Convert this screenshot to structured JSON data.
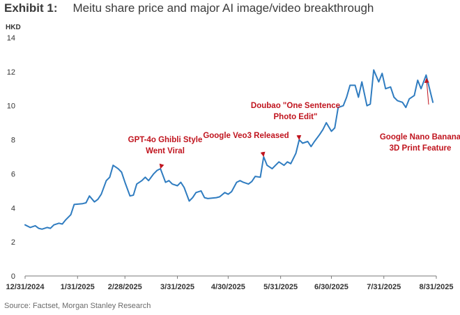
{
  "header": {
    "exhibit_label": "Exhibit 1:",
    "title": "Meitu share price and major AI image/video breakthrough"
  },
  "footer": {
    "source": "Source: Factset, Morgan Stanley Research"
  },
  "colors": {
    "line": "#2f7cc0",
    "annotation": "#c0141e",
    "axis_text": "#333333"
  },
  "chart_data": {
    "type": "line",
    "ylabel": "HKD",
    "xlabel": "",
    "ylim": [
      0,
      14
    ],
    "yticks": [
      0,
      2,
      4,
      6,
      8,
      10,
      12,
      14
    ],
    "xlim": [
      "2024-12-31",
      "2025-08-31"
    ],
    "xticks": [
      "2024-12-31",
      "2025-01-31",
      "2025-02-28",
      "2025-03-31",
      "2025-04-30",
      "2025-05-31",
      "2025-06-30",
      "2025-07-31",
      "2025-08-31"
    ],
    "xtick_labels": [
      "12/31/2024",
      "1/31/2025",
      "2/28/2025",
      "3/31/2025",
      "4/30/2025",
      "5/31/2025",
      "6/30/2025",
      "7/31/2025",
      "8/31/2025"
    ],
    "grid": false,
    "series": [
      {
        "points": [
          [
            "2024-12-31",
            3.0
          ],
          [
            "2025-01-03",
            2.85
          ],
          [
            "2025-01-06",
            2.95
          ],
          [
            "2025-01-08",
            2.8
          ],
          [
            "2025-01-10",
            2.75
          ],
          [
            "2025-01-13",
            2.85
          ],
          [
            "2025-01-15",
            2.8
          ],
          [
            "2025-01-17",
            3.0
          ],
          [
            "2025-01-20",
            3.1
          ],
          [
            "2025-01-22",
            3.05
          ],
          [
            "2025-01-24",
            3.3
          ],
          [
            "2025-01-27",
            3.6
          ],
          [
            "2025-01-29",
            4.2
          ],
          [
            "2025-02-03",
            4.25
          ],
          [
            "2025-02-05",
            4.3
          ],
          [
            "2025-02-07",
            4.7
          ],
          [
            "2025-02-10",
            4.35
          ],
          [
            "2025-02-12",
            4.5
          ],
          [
            "2025-02-14",
            4.8
          ],
          [
            "2025-02-17",
            5.6
          ],
          [
            "2025-02-19",
            5.8
          ],
          [
            "2025-02-21",
            6.5
          ],
          [
            "2025-02-24",
            6.3
          ],
          [
            "2025-02-26",
            6.1
          ],
          [
            "2025-02-28",
            5.5
          ],
          [
            "2025-03-03",
            4.7
          ],
          [
            "2025-03-05",
            4.75
          ],
          [
            "2025-03-07",
            5.4
          ],
          [
            "2025-03-10",
            5.6
          ],
          [
            "2025-03-12",
            5.8
          ],
          [
            "2025-03-14",
            5.6
          ],
          [
            "2025-03-17",
            6.0
          ],
          [
            "2025-03-19",
            6.2
          ],
          [
            "2025-03-21",
            6.3
          ],
          [
            "2025-03-24",
            5.5
          ],
          [
            "2025-03-26",
            5.6
          ],
          [
            "2025-03-28",
            5.4
          ],
          [
            "2025-03-31",
            5.3
          ],
          [
            "2025-04-02",
            5.5
          ],
          [
            "2025-04-04",
            5.2
          ],
          [
            "2025-04-07",
            4.4
          ],
          [
            "2025-04-09",
            4.6
          ],
          [
            "2025-04-11",
            4.9
          ],
          [
            "2025-04-14",
            5.0
          ],
          [
            "2025-04-16",
            4.6
          ],
          [
            "2025-04-18",
            4.55
          ],
          [
            "2025-04-23",
            4.6
          ],
          [
            "2025-04-25",
            4.65
          ],
          [
            "2025-04-28",
            4.9
          ],
          [
            "2025-04-30",
            4.8
          ],
          [
            "2025-05-02",
            4.95
          ],
          [
            "2025-05-05",
            5.5
          ],
          [
            "2025-05-07",
            5.6
          ],
          [
            "2025-05-09",
            5.5
          ],
          [
            "2025-05-12",
            5.4
          ],
          [
            "2025-05-14",
            5.55
          ],
          [
            "2025-05-16",
            5.85
          ],
          [
            "2025-05-19",
            5.8
          ],
          [
            "2025-05-21",
            7.0
          ],
          [
            "2025-05-23",
            6.5
          ],
          [
            "2025-05-26",
            6.3
          ],
          [
            "2025-05-28",
            6.5
          ],
          [
            "2025-05-30",
            6.7
          ],
          [
            "2025-06-02",
            6.5
          ],
          [
            "2025-06-04",
            6.7
          ],
          [
            "2025-06-06",
            6.6
          ],
          [
            "2025-06-09",
            7.2
          ],
          [
            "2025-06-11",
            8.0
          ],
          [
            "2025-06-13",
            7.8
          ],
          [
            "2025-06-16",
            7.9
          ],
          [
            "2025-06-18",
            7.6
          ],
          [
            "2025-06-20",
            7.9
          ],
          [
            "2025-06-23",
            8.3
          ],
          [
            "2025-06-25",
            8.6
          ],
          [
            "2025-06-27",
            9.0
          ],
          [
            "2025-06-30",
            8.5
          ],
          [
            "2025-07-02",
            8.7
          ],
          [
            "2025-07-04",
            9.9
          ],
          [
            "2025-07-07",
            10.0
          ],
          [
            "2025-07-09",
            10.5
          ],
          [
            "2025-07-11",
            11.2
          ],
          [
            "2025-07-14",
            11.2
          ],
          [
            "2025-07-16",
            10.5
          ],
          [
            "2025-07-18",
            11.4
          ],
          [
            "2025-07-21",
            10.0
          ],
          [
            "2025-07-23",
            10.1
          ],
          [
            "2025-07-25",
            12.1
          ],
          [
            "2025-07-28",
            11.4
          ],
          [
            "2025-07-30",
            11.9
          ],
          [
            "2025-08-01",
            11.0
          ],
          [
            "2025-08-04",
            11.1
          ],
          [
            "2025-08-06",
            10.5
          ],
          [
            "2025-08-08",
            10.3
          ],
          [
            "2025-08-11",
            10.2
          ],
          [
            "2025-08-13",
            9.9
          ],
          [
            "2025-08-15",
            10.4
          ],
          [
            "2025-08-18",
            10.6
          ],
          [
            "2025-08-20",
            11.5
          ],
          [
            "2025-08-22",
            11.0
          ],
          [
            "2025-08-25",
            11.8
          ],
          [
            "2025-08-27",
            11.0
          ],
          [
            "2025-08-29",
            10.2
          ]
        ]
      }
    ],
    "annotations": [
      {
        "lines": [
          "GPT-4o Ghibli Style",
          "Went Viral"
        ],
        "target": [
          "2025-03-21",
          6.3
        ]
      },
      {
        "lines": [
          "Google Veo3 Released"
        ],
        "target": [
          "2025-05-21",
          7.0
        ]
      },
      {
        "lines": [
          "Doubao \"One Sentence",
          "Photo Edit\""
        ],
        "target": [
          "2025-06-11",
          8.0
        ]
      },
      {
        "lines": [
          "Google Nano Banana",
          "3D Print Feature"
        ],
        "target": [
          "2025-08-25",
          11.8
        ]
      }
    ]
  }
}
